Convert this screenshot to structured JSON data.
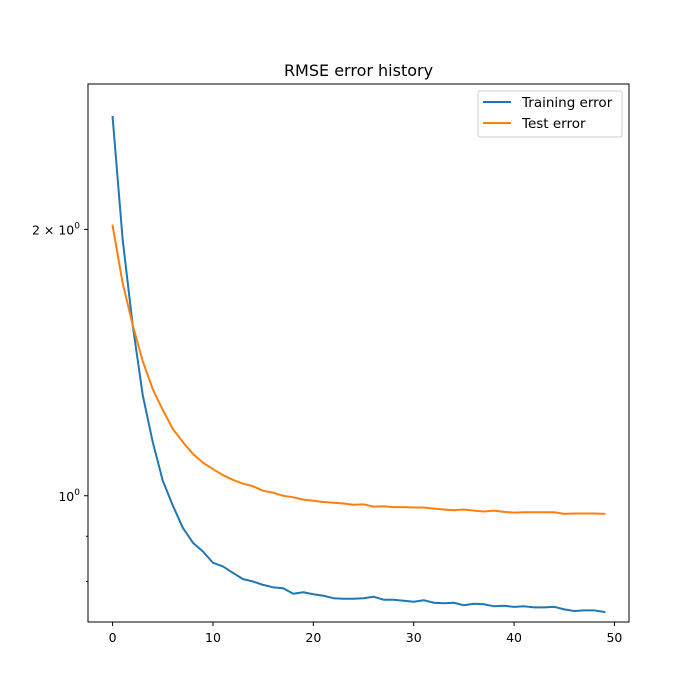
{
  "chart_data": {
    "type": "line",
    "title": "RMSE error history",
    "xlabel": "",
    "ylabel": "",
    "yscale": "log",
    "xlim": [
      -2.45,
      51.45
    ],
    "ylim": [
      0.72,
      2.92
    ],
    "x_ticks": [
      0,
      10,
      20,
      30,
      40,
      50
    ],
    "x_tick_labels": [
      "0",
      "10",
      "20",
      "30",
      "40",
      "50"
    ],
    "y_major_ticks": [
      1,
      2
    ],
    "y_major_tick_labels": [
      {
        "base": "10",
        "exp": "0",
        "mult": ""
      },
      {
        "base": "10",
        "exp": "0",
        "mult": "2 × "
      }
    ],
    "y_minor_ticks": [
      0.8,
      0.9
    ],
    "grid": false,
    "legend_position": "top-right",
    "series": [
      {
        "name": "Training error",
        "color": "#1f77b4",
        "values": [
          2.68,
          1.95,
          1.56,
          1.3,
          1.15,
          1.04,
          0.975,
          0.92,
          0.885,
          0.865,
          0.84,
          0.832,
          0.818,
          0.805,
          0.8,
          0.793,
          0.788,
          0.786,
          0.775,
          0.778,
          0.774,
          0.771,
          0.766,
          0.765,
          0.765,
          0.766,
          0.769,
          0.763,
          0.763,
          0.761,
          0.759,
          0.762,
          0.757,
          0.756,
          0.757,
          0.752,
          0.755,
          0.754,
          0.75,
          0.751,
          0.749,
          0.75,
          0.748,
          0.748,
          0.749,
          0.744,
          0.741,
          0.742,
          0.742,
          0.739
        ]
      },
      {
        "name": "Test error",
        "color": "#ff7f0e",
        "values": [
          2.02,
          1.74,
          1.56,
          1.42,
          1.32,
          1.25,
          1.19,
          1.15,
          1.115,
          1.09,
          1.072,
          1.055,
          1.042,
          1.032,
          1.025,
          1.013,
          1.008,
          1.0,
          0.996,
          0.99,
          0.987,
          0.984,
          0.982,
          0.98,
          0.977,
          0.978,
          0.972,
          0.973,
          0.971,
          0.971,
          0.97,
          0.97,
          0.967,
          0.965,
          0.963,
          0.965,
          0.962,
          0.96,
          0.962,
          0.959,
          0.957,
          0.958,
          0.958,
          0.958,
          0.958,
          0.954,
          0.955,
          0.955,
          0.955,
          0.954
        ]
      }
    ]
  }
}
